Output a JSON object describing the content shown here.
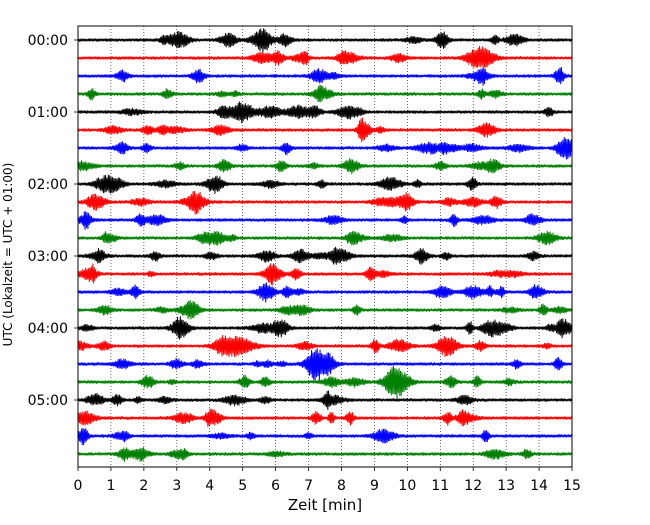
{
  "chart_data": {
    "type": "line",
    "title": "",
    "xlabel": "Zeit  [min]",
    "ylabel": "UTC (Lokalzeit = UTC + 01:00)",
    "xlim": [
      0,
      15
    ],
    "x_ticks": [
      "0",
      "1",
      "2",
      "3",
      "4",
      "5",
      "6",
      "7",
      "8",
      "9",
      "10",
      "11",
      "12",
      "13",
      "14",
      "15"
    ],
    "y_ticks": [
      "00:00",
      "01:00",
      "02:00",
      "03:00",
      "04:00",
      "05:00"
    ],
    "grid": "vertical dotted",
    "legend": "none",
    "row_interval_minutes": 15,
    "rows": 24,
    "colors": [
      "#000000",
      "#ff0000",
      "#0000ff",
      "#008000"
    ]
  }
}
